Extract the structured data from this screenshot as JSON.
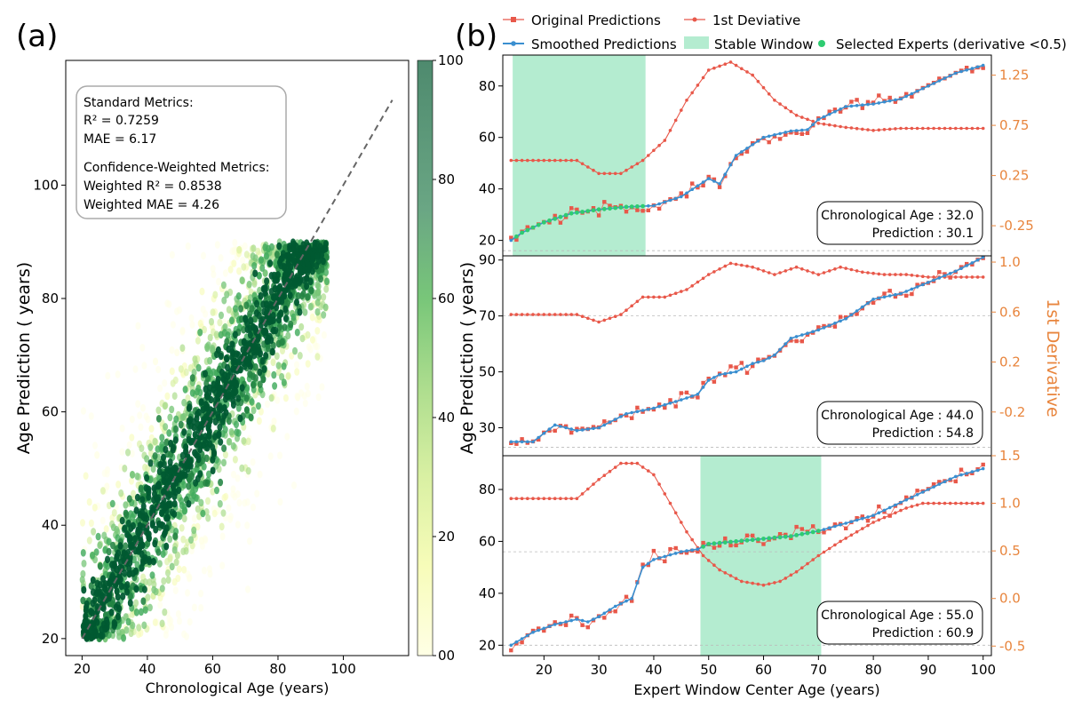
{
  "panel_a": {
    "label": "(a)",
    "xlabel": "Chronological Age (years)",
    "ylabel": "Age Prediction ( years)",
    "xticks": [
      20,
      40,
      60,
      80,
      100
    ],
    "yticks": [
      20,
      40,
      60,
      80,
      100
    ],
    "colorbar_ticks": [
      {
        "value": 0,
        "text": "00"
      },
      {
        "value": 20,
        "text": "20"
      },
      {
        "value": 40,
        "text": "40"
      },
      {
        "value": 60,
        "text": "60"
      },
      {
        "value": 80,
        "text": "80"
      },
      {
        "value": 100,
        "text": "100"
      }
    ],
    "metrics": {
      "standard_title": "Standard Metrics:",
      "r2": "R² = 0.7259",
      "mae": "MAE = 6.17",
      "weighted_title": "Confidence-Weighted Metrics:",
      "weighted_r2": "Weighted R² = 0.8538",
      "weighted_mae": "Weighted MAE = 4.26"
    }
  },
  "panel_b": {
    "label": "(b)",
    "xlabel": "Expert Window Center Age (years)",
    "ylabel": "Age Prediction ( years)",
    "ylabel_right": "1st Derivative",
    "xticks": [
      20,
      30,
      40,
      50,
      60,
      70,
      80,
      90,
      100
    ],
    "legend": {
      "original": "Original Predictions",
      "derivative": "1st Deviative",
      "smoothed": "Smoothed Predictions",
      "stable": "Stable Window",
      "selected": "Selected Experts (derivative <0.5)"
    }
  },
  "colors": {
    "original": "#e8584a",
    "smoothed": "#3a8fd0",
    "derivative": "#e8584a",
    "stable": "#b4ecd0",
    "selected": "#2ecc71",
    "axis_right": "#e8853d",
    "colormap": [
      "#ffffe5",
      "#f7fcb9",
      "#d9f0a3",
      "#addd8e",
      "#78c679",
      "#41ab5d",
      "#238443",
      "#005a32"
    ]
  },
  "chart_data": [
    {
      "type": "scatter",
      "panel": "a",
      "xlim": [
        15,
        120
      ],
      "ylim": [
        17,
        122
      ],
      "colorbar_range": [
        0,
        100
      ],
      "identity_line": {
        "from": [
          20,
          20
        ],
        "to": [
          115,
          115
        ],
        "style": "dashed"
      },
      "description_points": "dense cloud along identity line, 20-100 years",
      "cluster_seeds": [
        {
          "x": 25,
          "y": 25
        },
        {
          "x": 35,
          "y": 38
        },
        {
          "x": 45,
          "y": 45
        },
        {
          "x": 55,
          "y": 55
        },
        {
          "x": 65,
          "y": 65
        },
        {
          "x": 75,
          "y": 75
        },
        {
          "x": 85,
          "y": 83
        },
        {
          "x": 90,
          "y": 84
        }
      ]
    },
    {
      "type": "line",
      "panel": "b1",
      "chronological_age_label": "Chronological Age : 32.0",
      "prediction_label": "Prediction : 30.1",
      "xlim": [
        12.5,
        101.5
      ],
      "ylim": [
        14,
        92
      ],
      "y2lim": [
        -0.55,
        1.45
      ],
      "yticks": [
        20,
        40,
        60,
        80
      ],
      "y2ticks": [
        {
          "value": -0.25,
          "text": "-0.25"
        },
        {
          "value": 0.25,
          "text": "0.25"
        },
        {
          "value": 0.75,
          "text": "0.75"
        },
        {
          "value": 1.25,
          "text": "1.25"
        }
      ],
      "hline_y": 16,
      "stable_window": [
        14.3,
        38.5
      ],
      "smoothed_anchors": [
        [
          14,
          20
        ],
        [
          16,
          23
        ],
        [
          20,
          27
        ],
        [
          25,
          30.5
        ],
        [
          30,
          32
        ],
        [
          35,
          33
        ],
        [
          40,
          33.5
        ],
        [
          45,
          37
        ],
        [
          50,
          44
        ],
        [
          52,
          42
        ],
        [
          55,
          53
        ],
        [
          60,
          60
        ],
        [
          65,
          62.5
        ],
        [
          68,
          63
        ],
        [
          70,
          67
        ],
        [
          75,
          72
        ],
        [
          80,
          73
        ],
        [
          85,
          75
        ],
        [
          90,
          80
        ],
        [
          95,
          85
        ],
        [
          100,
          88
        ]
      ],
      "derivative_anchors": [
        [
          14,
          0.4
        ],
        [
          26,
          0.4
        ],
        [
          30,
          0.27
        ],
        [
          34,
          0.27
        ],
        [
          38,
          0.4
        ],
        [
          42,
          0.6
        ],
        [
          46,
          1.0
        ],
        [
          50,
          1.3
        ],
        [
          54,
          1.38
        ],
        [
          58,
          1.25
        ],
        [
          62,
          1.0
        ],
        [
          66,
          0.85
        ],
        [
          70,
          0.77
        ],
        [
          75,
          0.73
        ],
        [
          80,
          0.7
        ],
        [
          85,
          0.72
        ],
        [
          100,
          0.72
        ]
      ]
    },
    {
      "type": "line",
      "panel": "b2",
      "chronological_age_label": "Chronological Age : 44.0",
      "prediction_label": "Prediction : 54.8",
      "xlim": [
        12.5,
        101.5
      ],
      "ylim": [
        20,
        91.5
      ],
      "y2lim": [
        -0.55,
        1.05
      ],
      "yticks": [
        30,
        50,
        70,
        90
      ],
      "y2ticks": [
        {
          "value": -0.2,
          "text": "-0.2"
        },
        {
          "value": 0.2,
          "text": "0.2"
        },
        {
          "value": 0.6,
          "text": "0.6"
        },
        {
          "value": 1.0,
          "text": "1.0"
        }
      ],
      "hline_y": 23,
      "hline2_y": 70,
      "smoothed_anchors": [
        [
          14,
          25
        ],
        [
          18,
          25
        ],
        [
          22,
          31
        ],
        [
          26,
          29
        ],
        [
          30,
          30
        ],
        [
          35,
          35
        ],
        [
          40,
          37
        ],
        [
          45,
          40
        ],
        [
          48,
          42
        ],
        [
          50,
          47
        ],
        [
          52,
          49
        ],
        [
          55,
          50
        ],
        [
          58,
          53
        ],
        [
          60,
          54
        ],
        [
          62,
          56
        ],
        [
          65,
          62
        ],
        [
          70,
          65
        ],
        [
          75,
          69
        ],
        [
          80,
          76
        ],
        [
          85,
          78
        ],
        [
          90,
          82
        ],
        [
          95,
          86
        ],
        [
          100,
          91
        ]
      ],
      "derivative_anchors": [
        [
          14,
          0.58
        ],
        [
          26,
          0.58
        ],
        [
          30,
          0.52
        ],
        [
          34,
          0.58
        ],
        [
          38,
          0.72
        ],
        [
          42,
          0.72
        ],
        [
          46,
          0.78
        ],
        [
          50,
          0.9
        ],
        [
          54,
          0.99
        ],
        [
          58,
          0.96
        ],
        [
          62,
          0.9
        ],
        [
          66,
          0.96
        ],
        [
          70,
          0.9
        ],
        [
          74,
          0.96
        ],
        [
          78,
          0.92
        ],
        [
          82,
          0.9
        ],
        [
          86,
          0.9
        ],
        [
          90,
          0.88
        ],
        [
          100,
          0.88
        ]
      ]
    },
    {
      "type": "line",
      "panel": "b3",
      "chronological_age_label": "Chronological Age : 55.0",
      "prediction_label": "Prediction : 60.9",
      "xlim": [
        12.5,
        101.5
      ],
      "ylim": [
        16,
        93
      ],
      "y2lim": [
        -0.6,
        1.5
      ],
      "yticks": [
        20,
        40,
        60,
        80
      ],
      "y2ticks": [
        {
          "value": -0.5,
          "text": "-0.5"
        },
        {
          "value": 0.0,
          "text": "0.0"
        },
        {
          "value": 0.5,
          "text": "0.5"
        },
        {
          "value": 1.0,
          "text": "1.0"
        },
        {
          "value": 1.5,
          "text": "1.5"
        }
      ],
      "hline_y": 20,
      "hline2_y": 56,
      "stable_window": [
        48.5,
        70.5
      ],
      "smoothed_anchors": [
        [
          14,
          20
        ],
        [
          18,
          25
        ],
        [
          22,
          28
        ],
        [
          26,
          30
        ],
        [
          28,
          29
        ],
        [
          30,
          31
        ],
        [
          33,
          35
        ],
        [
          36,
          38
        ],
        [
          38,
          50
        ],
        [
          40,
          53
        ],
        [
          45,
          56
        ],
        [
          48,
          57
        ],
        [
          50,
          59
        ],
        [
          55,
          60
        ],
        [
          60,
          61
        ],
        [
          65,
          62
        ],
        [
          70,
          64
        ],
        [
          75,
          67
        ],
        [
          80,
          70
        ],
        [
          85,
          75
        ],
        [
          90,
          80
        ],
        [
          95,
          85
        ],
        [
          100,
          88
        ]
      ],
      "derivative_anchors": [
        [
          14,
          1.05
        ],
        [
          26,
          1.05
        ],
        [
          30,
          1.25
        ],
        [
          34,
          1.42
        ],
        [
          37,
          1.42
        ],
        [
          40,
          1.3
        ],
        [
          43,
          1.0
        ],
        [
          46,
          0.7
        ],
        [
          49,
          0.45
        ],
        [
          52,
          0.3
        ],
        [
          56,
          0.18
        ],
        [
          60,
          0.14
        ],
        [
          63,
          0.18
        ],
        [
          66,
          0.28
        ],
        [
          70,
          0.45
        ],
        [
          74,
          0.6
        ],
        [
          80,
          0.8
        ],
        [
          86,
          0.95
        ],
        [
          89,
          1.0
        ],
        [
          100,
          1.0
        ]
      ]
    }
  ]
}
